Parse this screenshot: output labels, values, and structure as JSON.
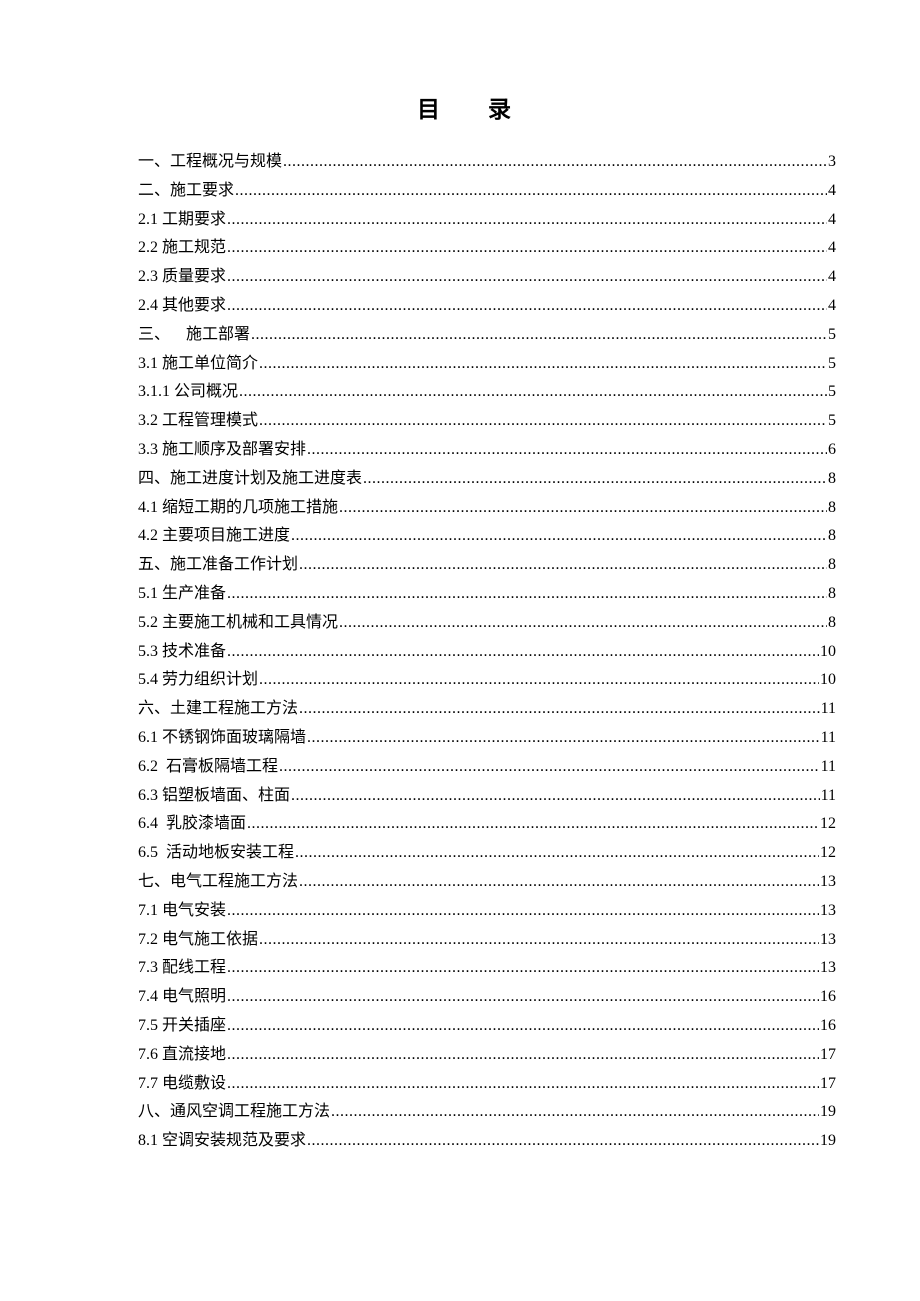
{
  "title": "目录",
  "entries": [
    {
      "label": "一、工程概况与规模",
      "page": "3"
    },
    {
      "label": "二、施工要求",
      "page": "4"
    },
    {
      "label": "2.1 工期要求",
      "page": "4"
    },
    {
      "label": "2.2 施工规范",
      "page": "4"
    },
    {
      "label": "2.3 质量要求",
      "page": "4"
    },
    {
      "label": "2.4 其他要求",
      "page": "4"
    },
    {
      "label": "三、    施工部署",
      "page": "5"
    },
    {
      "label": "3.1 施工单位简介",
      "page": "5"
    },
    {
      "label": "3.1.1 公司概况",
      "page": "5"
    },
    {
      "label": "3.2 工程管理模式",
      "page": "5"
    },
    {
      "label": "3.3 施工顺序及部署安排",
      "page": "6"
    },
    {
      "label": "四、施工进度计划及施工进度表",
      "page": "8"
    },
    {
      "label": "4.1 缩短工期的几项施工措施",
      "page": "8"
    },
    {
      "label": "4.2 主要项目施工进度",
      "page": "8"
    },
    {
      "label": "五、施工准备工作计划",
      "page": "8"
    },
    {
      "label": "5.1 生产准备",
      "page": "8"
    },
    {
      "label": "5.2 主要施工机械和工具情况",
      "page": "8"
    },
    {
      "label": "5.3 技术准备",
      "page": "10"
    },
    {
      "label": "5.4 劳力组织计划",
      "page": "10"
    },
    {
      "label": "六、土建工程施工方法",
      "page": "11"
    },
    {
      "label": "6.1 不锈钢饰面玻璃隔墙",
      "page": "11"
    },
    {
      "label": "6.2  石膏板隔墙工程",
      "page": "11"
    },
    {
      "label": "6.3 铝塑板墙面、柱面",
      "page": "11"
    },
    {
      "label": "6.4  乳胶漆墙面",
      "page": "12"
    },
    {
      "label": "6.5  活动地板安装工程",
      "page": "12"
    },
    {
      "label": "七、电气工程施工方法",
      "page": "13"
    },
    {
      "label": "7.1 电气安装",
      "page": "13"
    },
    {
      "label": "7.2 电气施工依据",
      "page": "13"
    },
    {
      "label": "7.3 配线工程",
      "page": "13"
    },
    {
      "label": "7.4 电气照明",
      "page": "16"
    },
    {
      "label": "7.5 开关插座",
      "page": "16"
    },
    {
      "label": "7.6 直流接地",
      "page": "17"
    },
    {
      "label": "7.7 电缆敷设",
      "page": "17"
    },
    {
      "label": "八、通风空调工程施工方法",
      "page": "19"
    },
    {
      "label": "8.1 空调安装规范及要求",
      "page": "19"
    }
  ]
}
